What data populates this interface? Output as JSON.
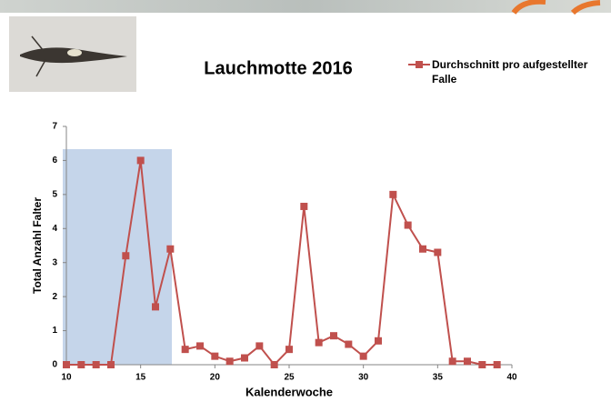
{
  "chart_data": {
    "type": "line",
    "title": "Lauchmotte 2016",
    "x_label": "Kalenderwoche",
    "y_label": "Total Anzahl Falter",
    "x": [
      10,
      11,
      12,
      13,
      14,
      15,
      16,
      17,
      18,
      19,
      20,
      21,
      22,
      23,
      24,
      25,
      26,
      27,
      28,
      29,
      30,
      31,
      32,
      33,
      34,
      35,
      36,
      37,
      38,
      39
    ],
    "series": [
      {
        "name": "Durchschnitt pro aufgestellter Falle",
        "color": "#c0504d",
        "values": [
          0,
          0,
          0,
          0,
          3.2,
          6.0,
          1.7,
          3.4,
          0.45,
          0.55,
          0.25,
          0.1,
          0.2,
          0.55,
          0,
          0.45,
          4.65,
          0.65,
          0.85,
          0.6,
          0.25,
          0.7,
          5.0,
          4.1,
          3.4,
          3.3,
          0.1,
          0.1,
          0,
          0
        ]
      }
    ],
    "xlim": [
      10,
      40
    ],
    "xticks": [
      10,
      15,
      20,
      25,
      30,
      35,
      40
    ],
    "ylim": [
      0,
      7
    ],
    "yticks": [
      0,
      1,
      2,
      3,
      4,
      5,
      6,
      7
    ],
    "grid": false,
    "legend": "top-right"
  }
}
